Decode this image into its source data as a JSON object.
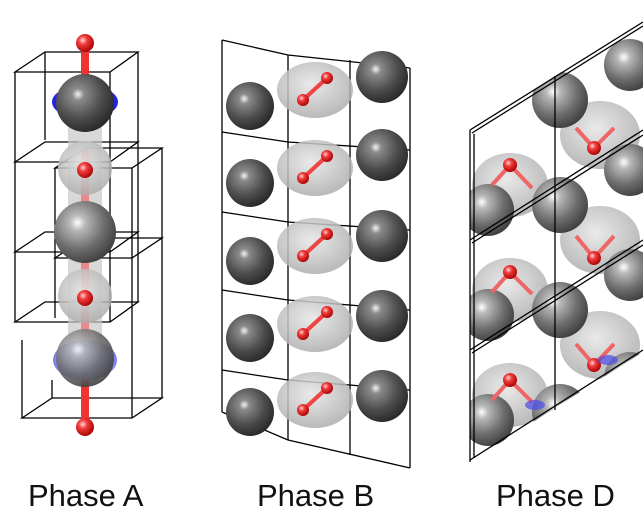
{
  "panels": [
    {
      "label": "Phase A"
    },
    {
      "label": "Phase B"
    },
    {
      "label": "Phase D"
    }
  ],
  "colors": {
    "metal_atom": "#7a7a7a",
    "metal_atom_dark": "#4a4a4a",
    "oxygen_atom": "#ee1c1c",
    "isosurface": "#c8c8c8",
    "negative_lobe": "#2424e6",
    "cell_edge": "#000000",
    "background": "#ffffff"
  }
}
